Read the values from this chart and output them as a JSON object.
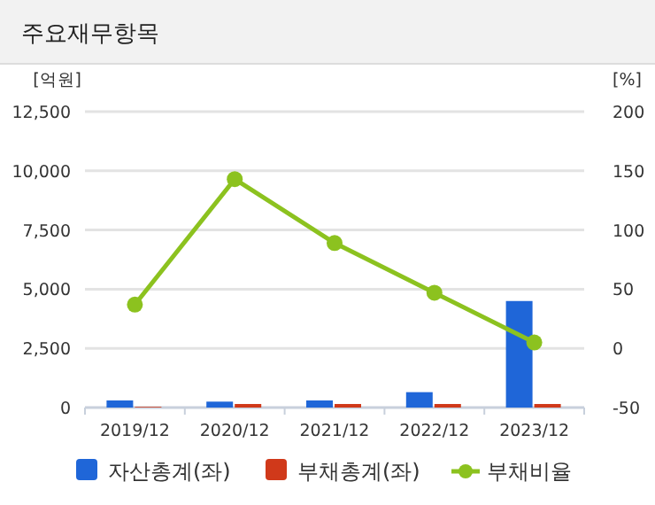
{
  "chart_data": {
    "type": "bar",
    "title": "주요재무항목",
    "ylabel": "[억원]",
    "y2label": "[%]",
    "categories": [
      "2019/12",
      "2020/12",
      "2021/12",
      "2022/12",
      "2023/12"
    ],
    "series": [
      {
        "name": "자산총계(좌)",
        "color": "#1f66d8",
        "values": [
          300,
          250,
          300,
          650,
          4500
        ]
      },
      {
        "name": "부채총계(좌)",
        "color": "#d0391a",
        "values": [
          30,
          150,
          150,
          150,
          150
        ]
      },
      {
        "name": "부채비율",
        "type": "line",
        "axis": "y2",
        "color": "#8cc21f",
        "marker": "circle",
        "values": [
          37,
          143,
          89,
          47,
          5
        ]
      }
    ],
    "ylim": [
      0,
      12500
    ],
    "yticks": [
      {
        "value": 0,
        "label": "0"
      },
      {
        "value": 2500,
        "label": "2,500"
      },
      {
        "value": 5000,
        "label": "5,000"
      },
      {
        "value": 7500,
        "label": "7,500"
      },
      {
        "value": 10000,
        "label": "10,000"
      },
      {
        "value": 12500,
        "label": "12,500"
      }
    ],
    "y2lim": [
      -50,
      200
    ],
    "y2ticks": [
      -50,
      0,
      50,
      100,
      150,
      200
    ],
    "grid": "y",
    "legend": "bottom"
  }
}
